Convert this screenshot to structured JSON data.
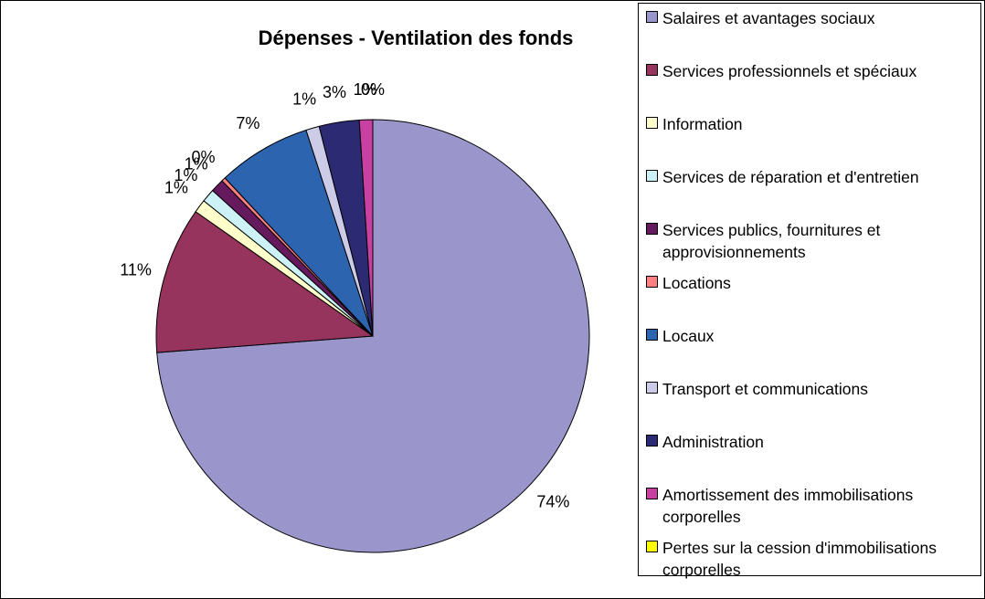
{
  "chart_data": {
    "type": "pie",
    "title": "Dépenses - Ventilation des fonds",
    "categories": [
      "Salaires et avantages sociaux",
      "Services professionnels et spéciaux",
      "Information",
      "Services de réparation et d'entretien",
      "Services publics, fournitures et approvisionnements",
      "Locations",
      "Locaux",
      "Transport et communications",
      "Administration",
      "Amortissement des immobilisations corporelles",
      "Pertes sur la cession d'immobilisations corporelles"
    ],
    "values": [
      74,
      11,
      1,
      1,
      1,
      0.3,
      7,
      1,
      3,
      1,
      0
    ],
    "value_labels": [
      "74%",
      "11%",
      "1%",
      "1%",
      "1%",
      "0%",
      "7%",
      "1%",
      "3%",
      "1%",
      "0%"
    ],
    "colors": [
      "#9a96cb",
      "#96345e",
      "#ffffcc",
      "#ccf2f8",
      "#661a5e",
      "#ff8080",
      "#2c64b0",
      "#cccce8",
      "#2b2a72",
      "#c840a0",
      "#ffff00"
    ],
    "legend": "right"
  }
}
